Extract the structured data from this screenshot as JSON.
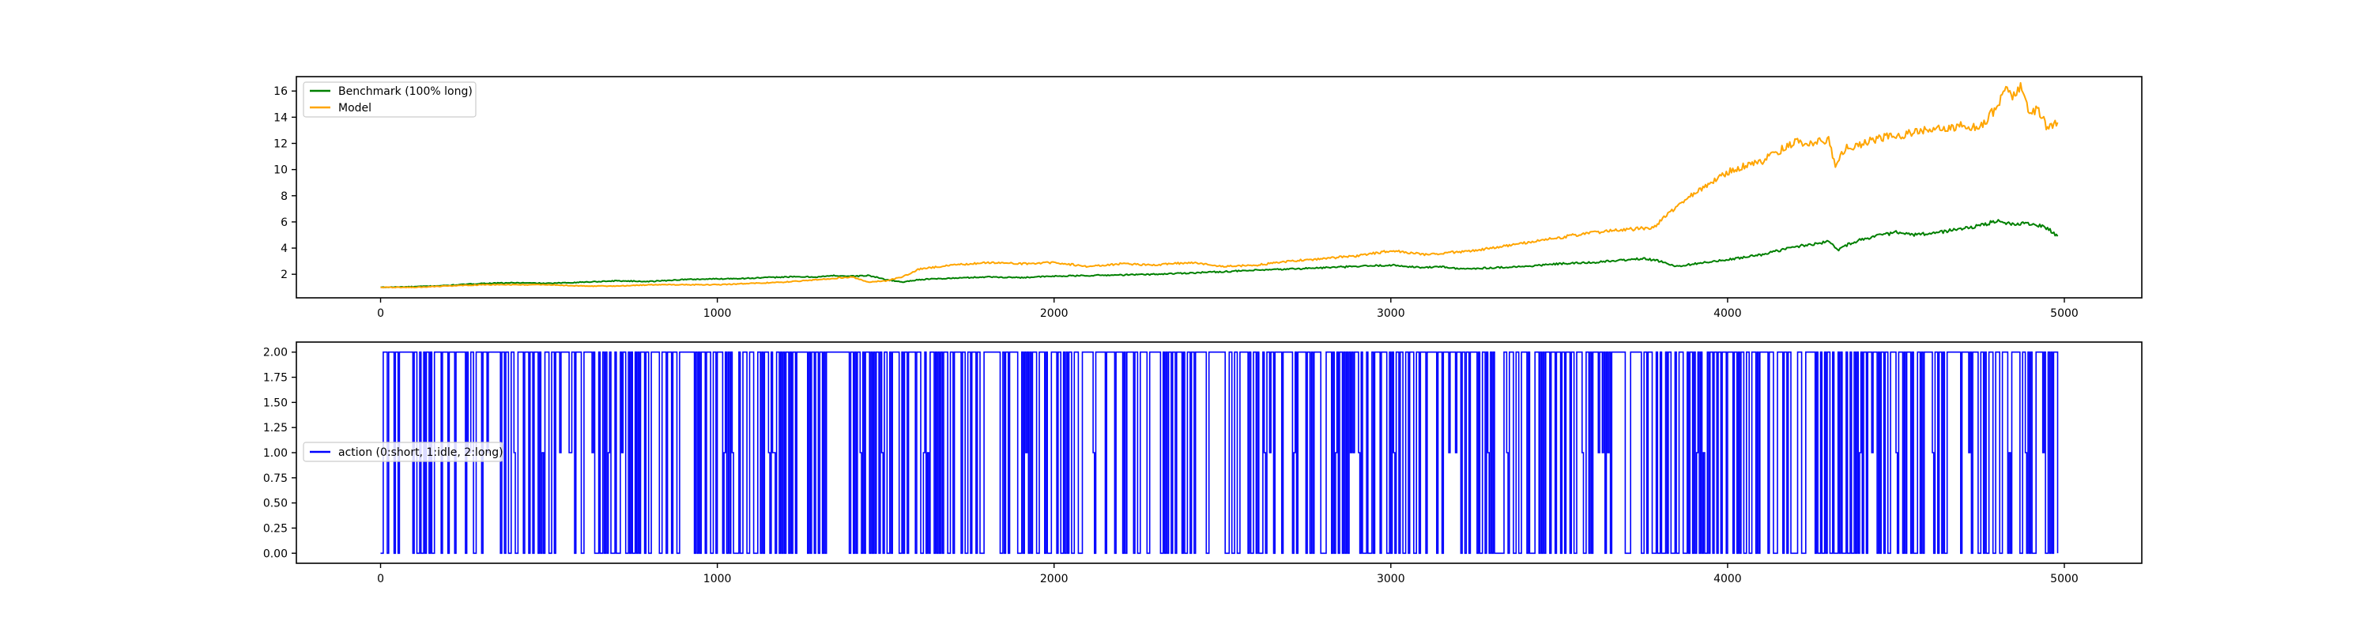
{
  "chart_data": [
    {
      "type": "line",
      "title": "",
      "xlabel": "",
      "ylabel": "",
      "xlim": [
        -250,
        5230
      ],
      "ylim": [
        0.2,
        17.1
      ],
      "xticks": [
        0,
        1000,
        2000,
        3000,
        4000,
        5000
      ],
      "yticks": [
        2,
        4,
        6,
        8,
        10,
        12,
        14,
        16
      ],
      "grid": false,
      "legend_position": "top-left",
      "series": [
        {
          "name": "Benchmark (100% long)",
          "color": "#008000",
          "x": [
            0,
            100,
            200,
            300,
            400,
            500,
            600,
            700,
            800,
            900,
            1000,
            1100,
            1200,
            1300,
            1350,
            1400,
            1450,
            1500,
            1550,
            1600,
            1700,
            1800,
            1900,
            2000,
            2100,
            2200,
            2300,
            2400,
            2500,
            2600,
            2700,
            2800,
            2900,
            3000,
            3100,
            3150,
            3200,
            3300,
            3400,
            3500,
            3600,
            3700,
            3750,
            3800,
            3850,
            3900,
            4000,
            4100,
            4200,
            4300,
            4330,
            4350,
            4400,
            4500,
            4550,
            4600,
            4700,
            4750,
            4800,
            4850,
            4900,
            4950,
            4980
          ],
          "y": [
            1.0,
            1.05,
            1.15,
            1.3,
            1.35,
            1.3,
            1.4,
            1.5,
            1.45,
            1.6,
            1.65,
            1.7,
            1.8,
            1.8,
            1.9,
            1.85,
            1.9,
            1.6,
            1.4,
            1.6,
            1.7,
            1.8,
            1.75,
            1.85,
            1.9,
            1.95,
            2.0,
            2.1,
            2.2,
            2.3,
            2.4,
            2.5,
            2.6,
            2.7,
            2.5,
            2.6,
            2.4,
            2.5,
            2.6,
            2.8,
            2.9,
            3.1,
            3.2,
            3.0,
            2.6,
            2.8,
            3.1,
            3.5,
            4.1,
            4.5,
            3.9,
            4.2,
            4.7,
            5.2,
            5.0,
            5.1,
            5.5,
            5.7,
            6.1,
            5.8,
            5.9,
            5.5,
            4.9
          ]
        },
        {
          "name": "Model",
          "color": "#ffa500",
          "x": [
            0,
            100,
            200,
            300,
            400,
            500,
            600,
            700,
            800,
            900,
            1000,
            1100,
            1200,
            1300,
            1400,
            1450,
            1500,
            1550,
            1600,
            1700,
            1800,
            1900,
            2000,
            2100,
            2200,
            2300,
            2400,
            2500,
            2600,
            2700,
            2800,
            2900,
            3000,
            3100,
            3200,
            3300,
            3400,
            3500,
            3600,
            3700,
            3780,
            3850,
            3900,
            3950,
            4000,
            4050,
            4100,
            4150,
            4200,
            4250,
            4300,
            4320,
            4350,
            4400,
            4450,
            4500,
            4550,
            4600,
            4650,
            4700,
            4750,
            4800,
            4830,
            4850,
            4870,
            4900,
            4920,
            4950,
            4980
          ],
          "y": [
            1.0,
            1.0,
            1.1,
            1.2,
            1.2,
            1.2,
            1.1,
            1.1,
            1.2,
            1.2,
            1.2,
            1.3,
            1.4,
            1.6,
            1.8,
            1.4,
            1.5,
            1.8,
            2.4,
            2.7,
            2.9,
            2.8,
            2.9,
            2.6,
            2.8,
            2.7,
            2.9,
            2.6,
            2.7,
            3.0,
            3.2,
            3.4,
            3.8,
            3.5,
            3.7,
            4.0,
            4.4,
            4.8,
            5.2,
            5.4,
            5.6,
            7.2,
            8.2,
            9.0,
            9.8,
            10.3,
            10.6,
            11.4,
            12.1,
            12.0,
            12.3,
            10.4,
            11.6,
            12.0,
            12.4,
            12.6,
            12.8,
            13.2,
            13.0,
            13.4,
            13.2,
            14.8,
            16.2,
            15.6,
            16.3,
            14.2,
            14.6,
            13.2,
            13.6
          ]
        }
      ]
    },
    {
      "type": "line",
      "title": "",
      "xlabel": "",
      "ylabel": "",
      "xlim": [
        -250,
        5230
      ],
      "ylim": [
        -0.1,
        2.1
      ],
      "xticks": [
        0,
        1000,
        2000,
        3000,
        4000,
        5000
      ],
      "yticks": [
        0.0,
        0.25,
        0.5,
        0.75,
        1.0,
        1.25,
        1.5,
        1.75,
        2.0
      ],
      "ytick_decimals": 2,
      "grid": false,
      "legend_position": "center-left",
      "series": [
        {
          "name": "action (0:short, 1:idle, 2:long)",
          "color": "#0000ff",
          "step": true,
          "x_start": 0,
          "x_end": 4980,
          "x_step": 4,
          "sampling_seed": 12345,
          "p_short": 0.34,
          "p_idle": 0.04
        }
      ]
    }
  ]
}
